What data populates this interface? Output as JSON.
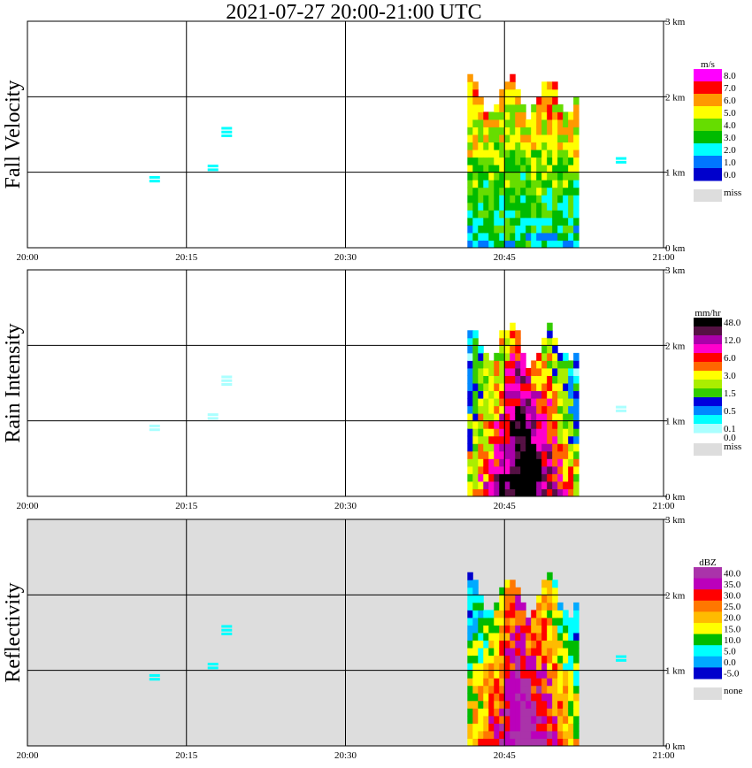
{
  "title": "2021-07-27   20:00-21:00 UTC",
  "chart_data": [
    {
      "type": "heatmap",
      "ylabel": "Fall Velocity",
      "unit": "m/s",
      "x_ticks": [
        "20:00",
        "20:15",
        "20:30",
        "20:45",
        "21:00"
      ],
      "y_ticks": [
        "0 km",
        "1 km",
        "2 km",
        "3 km"
      ],
      "xlim_min": [
        0,
        60
      ],
      "ylim_km": [
        0,
        3.0
      ],
      "grid": true,
      "background": "#ffffff",
      "colorbar": [
        {
          "label": "8.0",
          "color": "#ff00ff"
        },
        {
          "label": "7.0",
          "color": "#ff0000"
        },
        {
          "label": "6.0",
          "color": "#ff9900"
        },
        {
          "label": "5.0",
          "color": "#ffff00"
        },
        {
          "label": "4.0",
          "color": "#66dd00"
        },
        {
          "label": "3.0",
          "color": "#00bb00"
        },
        {
          "label": "2.0",
          "color": "#00ffff"
        },
        {
          "label": "1.0",
          "color": "#0077ff"
        },
        {
          "label": "0.0",
          "color": "#0000cc"
        }
      ],
      "missing_label": "miss",
      "missing_color": "#dddddd"
    },
    {
      "type": "heatmap",
      "ylabel": "Rain Intensity",
      "unit": "mm/hr",
      "x_ticks": [
        "20:00",
        "20:15",
        "20:30",
        "20:45",
        "21:00"
      ],
      "y_ticks": [
        "0 km",
        "1 km",
        "2 km",
        "3 km"
      ],
      "xlim_min": [
        0,
        60
      ],
      "ylim_km": [
        0,
        3.0
      ],
      "grid": true,
      "background": "#ffffff",
      "colorbar": [
        {
          "label": "48.0",
          "color": "#000000"
        },
        {
          "label": "",
          "color": "#551144"
        },
        {
          "label": "12.0",
          "color": "#aa00aa"
        },
        {
          "label": "",
          "color": "#ff00cc"
        },
        {
          "label": "6.0",
          "color": "#ff0000"
        },
        {
          "label": "",
          "color": "#ff6600"
        },
        {
          "label": "3.0",
          "color": "#ffff00"
        },
        {
          "label": "",
          "color": "#aaee00"
        },
        {
          "label": "1.5",
          "color": "#33cc00"
        },
        {
          "label": "",
          "color": "#0000dd"
        },
        {
          "label": "0.5",
          "color": "#0088ff"
        },
        {
          "label": "",
          "color": "#00ffff"
        },
        {
          "label": "0.1",
          "color": "#aaffff"
        }
      ],
      "extra_label": "0.0",
      "missing_label": "miss",
      "missing_color": "#dddddd"
    },
    {
      "type": "heatmap",
      "ylabel": "Reflectivity",
      "unit": "dBZ",
      "x_ticks": [
        "20:00",
        "20:15",
        "20:30",
        "20:45",
        "21:00"
      ],
      "y_ticks": [
        "0 km",
        "1 km",
        "2 km",
        "3 km"
      ],
      "xlim_min": [
        0,
        60
      ],
      "ylim_km": [
        0,
        3.0
      ],
      "grid": true,
      "background": "#dddddd",
      "colorbar": [
        {
          "label": "40.0",
          "color": "#aa33aa"
        },
        {
          "label": "35.0",
          "color": "#bb00bb"
        },
        {
          "label": "30.0",
          "color": "#ff0000"
        },
        {
          "label": "25.0",
          "color": "#ff7700"
        },
        {
          "label": "20.0",
          "color": "#ffbb00"
        },
        {
          "label": "15.0",
          "color": "#ffff00"
        },
        {
          "label": "10.0",
          "color": "#00bb00"
        },
        {
          "label": "5.0",
          "color": "#00ffff"
        },
        {
          "label": "0.0",
          "color": "#00aaff"
        },
        {
          "label": "-5.0",
          "color": "#0000cc"
        }
      ],
      "missing_label": "none",
      "missing_color": "#dddddd"
    }
  ]
}
